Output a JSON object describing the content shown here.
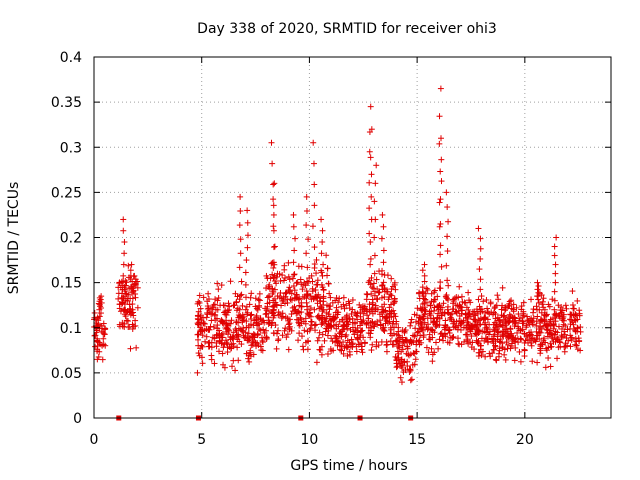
{
  "chart_data": {
    "type": "scatter",
    "title": "Day 338 of 2020, SRMTID for receiver ohi3",
    "xlabel": "GPS time / hours",
    "ylabel": "SRMTID / TECUs",
    "xlim": [
      0,
      24
    ],
    "ylim": [
      0,
      0.4
    ],
    "x_ticks": [
      0,
      5,
      10,
      15,
      20
    ],
    "x_tick_labels": [
      "0",
      "5",
      "10",
      "15",
      "20"
    ],
    "y_ticks": [
      0,
      0.05,
      0.1,
      0.15,
      0.2,
      0.25,
      0.3,
      0.35,
      0.4
    ],
    "y_tick_labels": [
      "0",
      "0.05",
      "0.1",
      "0.15",
      "0.2",
      "0.25",
      "0.3",
      "0.35",
      "0.4"
    ],
    "grid": true,
    "marker": "+",
    "color": "#e00000",
    "zero_markers_x": [
      1.15,
      4.85,
      9.6,
      12.35,
      14.7
    ],
    "data_segments": [
      {
        "start": 0.0,
        "end": 0.55,
        "base": 0.095,
        "spread": 0.03
      },
      {
        "start": 1.1,
        "end": 2.05,
        "base": 0.125,
        "spread": 0.035
      },
      {
        "start": 4.8,
        "end": 8.0,
        "base": 0.1,
        "spread": 0.035
      },
      {
        "start": 8.0,
        "end": 11.0,
        "base": 0.12,
        "spread": 0.045
      },
      {
        "start": 11.0,
        "end": 12.5,
        "base": 0.1,
        "spread": 0.03
      },
      {
        "start": 12.5,
        "end": 14.0,
        "base": 0.12,
        "spread": 0.04
      },
      {
        "start": 14.0,
        "end": 15.0,
        "base": 0.075,
        "spread": 0.03
      },
      {
        "start": 15.0,
        "end": 17.5,
        "base": 0.11,
        "spread": 0.035
      },
      {
        "start": 17.5,
        "end": 22.6,
        "base": 0.1,
        "spread": 0.03
      }
    ],
    "peaks": [
      {
        "x": 0.3,
        "y": 0.135
      },
      {
        "x": 1.4,
        "y": 0.22
      },
      {
        "x": 1.75,
        "y": 0.17
      },
      {
        "x": 6.8,
        "y": 0.245
      },
      {
        "x": 7.1,
        "y": 0.23
      },
      {
        "x": 8.3,
        "y": 0.305
      },
      {
        "x": 8.35,
        "y": 0.26
      },
      {
        "x": 9.3,
        "y": 0.225
      },
      {
        "x": 9.9,
        "y": 0.245
      },
      {
        "x": 10.2,
        "y": 0.305
      },
      {
        "x": 10.6,
        "y": 0.22
      },
      {
        "x": 12.8,
        "y": 0.345
      },
      {
        "x": 12.85,
        "y": 0.32
      },
      {
        "x": 13.05,
        "y": 0.28
      },
      {
        "x": 13.4,
        "y": 0.225
      },
      {
        "x": 15.3,
        "y": 0.17
      },
      {
        "x": 16.05,
        "y": 0.365
      },
      {
        "x": 16.1,
        "y": 0.31
      },
      {
        "x": 16.4,
        "y": 0.25
      },
      {
        "x": 17.9,
        "y": 0.21
      },
      {
        "x": 21.4,
        "y": 0.2
      },
      {
        "x": 20.6,
        "y": 0.15
      }
    ]
  }
}
